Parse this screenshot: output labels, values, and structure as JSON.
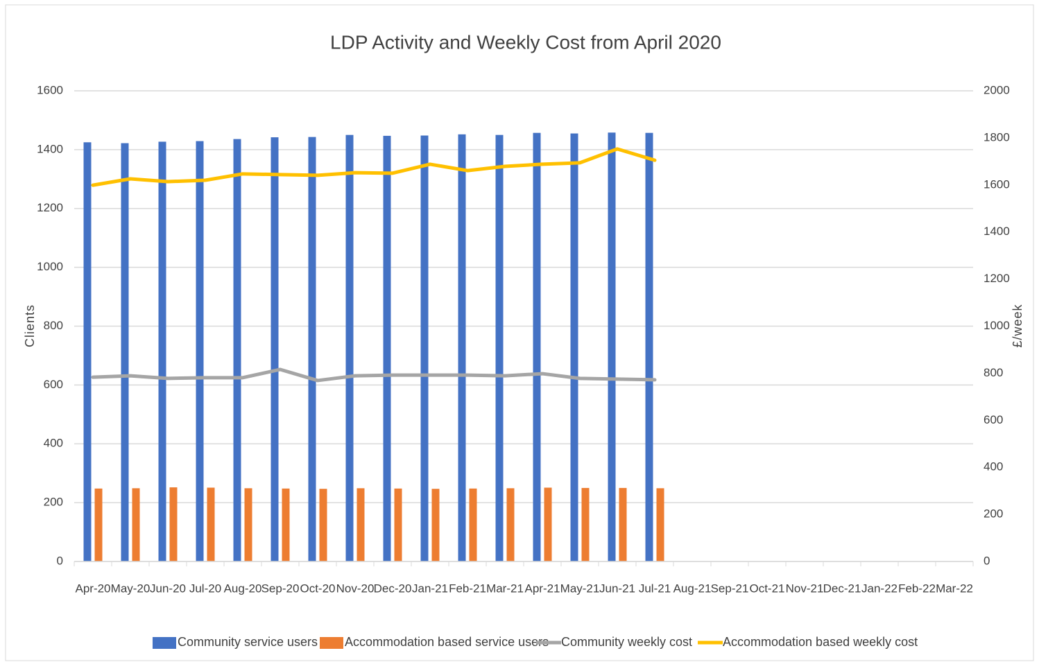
{
  "chart_data": {
    "type": "bar",
    "title": "LDP Activity and Weekly Cost from April 2020",
    "y_label": "Clients",
    "y2_label": "£/week",
    "categories": [
      "Apr-20",
      "May-20",
      "Jun-20",
      "Jul-20",
      "Aug-20",
      "Sep-20",
      "Oct-20",
      "Nov-20",
      "Dec-20",
      "Jan-21",
      "Feb-21",
      "Mar-21",
      "Apr-21",
      "May-21",
      "Jun-21",
      "Jul-21",
      "Aug-21",
      "Sep-21",
      "Oct-21",
      "Nov-21",
      "Dec-21",
      "Jan-22",
      "Feb-22",
      "Mar-22"
    ],
    "ylim": [
      0,
      1600
    ],
    "yticks": [
      0,
      200,
      400,
      600,
      800,
      1000,
      1200,
      1400,
      1600
    ],
    "y2lim": [
      0,
      2000
    ],
    "y2ticks": [
      0,
      200,
      400,
      600,
      800,
      1000,
      1200,
      1400,
      1600,
      1800,
      2000
    ],
    "grid": true,
    "legend": "bottom",
    "series": [
      {
        "name": "Community service users",
        "type": "bar",
        "color": "#4472c4",
        "values": [
          1425,
          1422,
          1427,
          1429,
          1436,
          1442,
          1443,
          1450,
          1447,
          1448,
          1452,
          1450,
          1457,
          1455,
          1458,
          1457,
          null,
          null,
          null,
          null,
          null,
          null,
          null,
          null
        ]
      },
      {
        "name": "Accommodation based service users",
        "type": "bar",
        "color": "#ed7d31",
        "values": [
          248,
          249,
          252,
          251,
          249,
          248,
          247,
          249,
          248,
          247,
          248,
          249,
          251,
          250,
          250,
          249,
          null,
          null,
          null,
          null,
          null,
          null,
          null,
          null
        ]
      },
      {
        "name": "Community weekly cost",
        "type": "line",
        "axis": "y2",
        "color": "#a5a5a5",
        "values": [
          783,
          789,
          778,
          781,
          781,
          816,
          769,
          789,
          792,
          792,
          792,
          789,
          798,
          778,
          775,
          772,
          null,
          null,
          null,
          null,
          null,
          null,
          null,
          null
        ]
      },
      {
        "name": "Accommodation based weekly cost",
        "type": "line",
        "axis": "y2",
        "color": "#ffc000",
        "values": [
          1599,
          1626,
          1614,
          1620,
          1647,
          1644,
          1641,
          1652,
          1650,
          1688,
          1661,
          1679,
          1688,
          1694,
          1753,
          1705,
          null,
          null,
          null,
          null,
          null,
          null,
          null,
          null
        ]
      }
    ]
  }
}
